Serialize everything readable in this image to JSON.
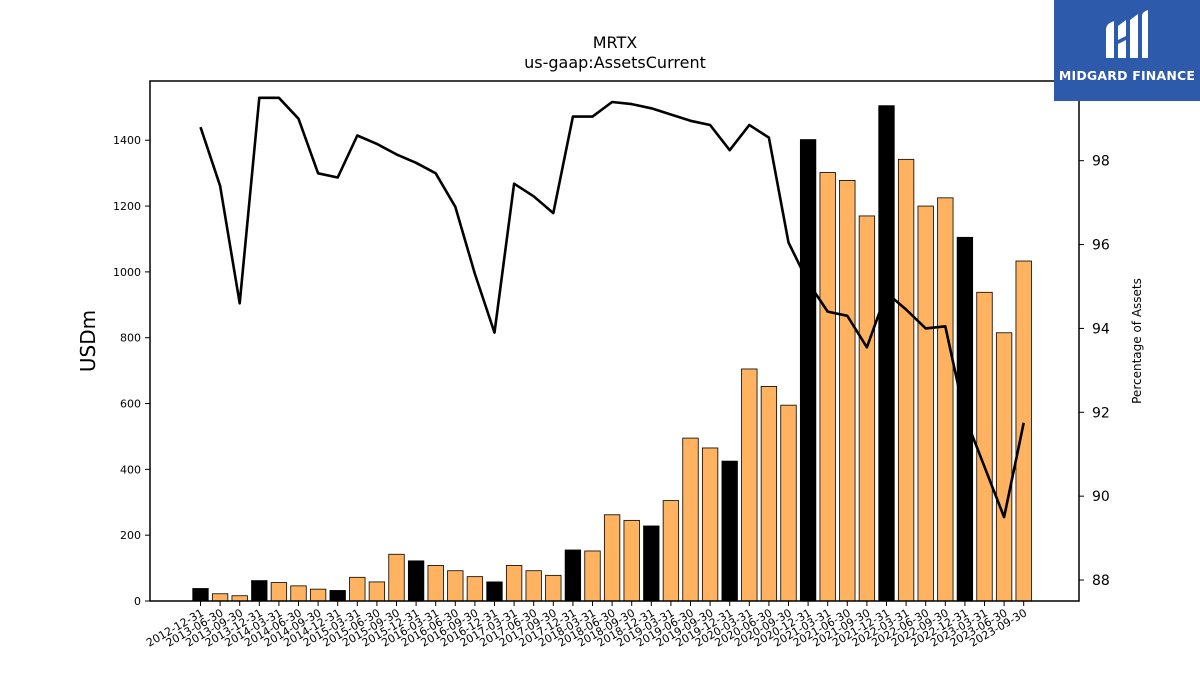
{
  "chart_data": {
    "type": "bar+line",
    "title": "MRTX",
    "subtitle": "us-gaap:AssetsCurrent",
    "ylabel": "USDm",
    "y2label": "Percentage of Assets",
    "ylim": [
      0,
      1580
    ],
    "y2lim": [
      87.5,
      99.9
    ],
    "yticks": [
      0,
      200,
      400,
      600,
      800,
      1000,
      1200,
      1400
    ],
    "y2ticks": [
      88,
      90,
      92,
      94,
      96,
      98
    ],
    "categories": [
      "2012-12-31",
      "2013-06-30",
      "2013-09-30",
      "2013-12-31",
      "2014-03-31",
      "2014-06-30",
      "2014-09-30",
      "2014-12-31",
      "2015-03-31",
      "2015-06-30",
      "2015-09-30",
      "2015-12-31",
      "2016-03-31",
      "2016-06-30",
      "2016-09-30",
      "2016-12-31",
      "2017-03-31",
      "2017-06-30",
      "2017-09-30",
      "2017-12-31",
      "2018-03-31",
      "2018-06-30",
      "2018-09-30",
      "2018-12-31",
      "2019-03-31",
      "2019-06-30",
      "2019-09-30",
      "2019-12-31",
      "2020-03-31",
      "2020-06-30",
      "2020-09-30",
      "2020-12-31",
      "2021-03-31",
      "2021-06-30",
      "2021-09-30",
      "2021-12-31",
      "2022-03-31",
      "2022-06-30",
      "2022-09-30",
      "2022-12-31",
      "2023-03-31",
      "2023-06-30",
      "2023-09-30"
    ],
    "series": [
      {
        "type": "bar",
        "values": [
          38,
          22,
          16,
          62,
          56,
          46,
          36,
          32,
          72,
          58,
          142,
          122,
          108,
          92,
          74,
          58,
          108,
          92,
          78,
          155,
          152,
          262,
          245,
          228,
          305,
          495,
          465,
          425,
          705,
          652,
          595,
          1402,
          1302,
          1278,
          1170,
          1505,
          1342,
          1200,
          1225,
          1105,
          938,
          815,
          1033
        ],
        "annual_flags": [
          true,
          false,
          false,
          true,
          false,
          false,
          false,
          true,
          false,
          false,
          false,
          true,
          false,
          false,
          false,
          true,
          false,
          false,
          false,
          true,
          false,
          false,
          false,
          true,
          false,
          false,
          false,
          true,
          false,
          false,
          false,
          true,
          false,
          false,
          false,
          true,
          false,
          false,
          false,
          true,
          false,
          false,
          false
        ]
      },
      {
        "type": "line",
        "axis": "secondary",
        "values": [
          98.8,
          97.4,
          94.6,
          99.5,
          99.5,
          99.0,
          97.7,
          97.6,
          98.6,
          98.4,
          98.15,
          97.95,
          97.7,
          96.9,
          95.3,
          93.9,
          97.45,
          97.15,
          96.75,
          99.05,
          99.05,
          99.4,
          99.35,
          99.25,
          99.1,
          98.95,
          98.85,
          98.25,
          98.85,
          98.55,
          96.05,
          95.1,
          94.4,
          94.3,
          93.55,
          94.85,
          94.45,
          94.0,
          94.05,
          91.9,
          90.7,
          89.5,
          91.75
        ]
      }
    ],
    "colors": {
      "bar": "#ffb360",
      "bar_annual": "#000000",
      "line": "#000000"
    },
    "grid": false,
    "legend": "none"
  },
  "logo": {
    "text": "MIDGARD FINANCE"
  }
}
